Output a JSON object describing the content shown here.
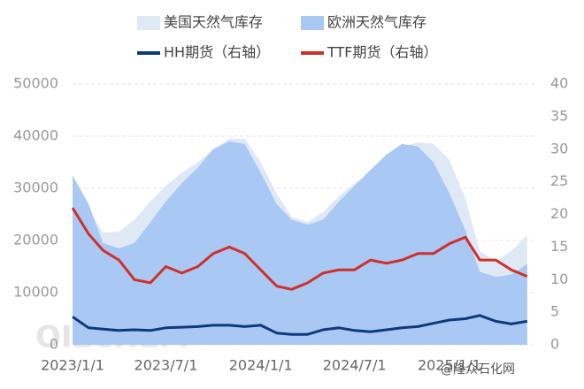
{
  "chart_data": {
    "type": "area-line",
    "x": [
      "2023/1/1",
      "2023/2/1",
      "2023/3/1",
      "2023/4/1",
      "2023/5/1",
      "2023/6/1",
      "2023/7/1",
      "2023/8/1",
      "2023/9/1",
      "2023/10/1",
      "2023/11/1",
      "2023/12/1",
      "2024/1/1",
      "2024/2/1",
      "2024/3/1",
      "2024/4/1",
      "2024/5/1",
      "2024/6/1",
      "2024/7/1",
      "2024/8/1",
      "2024/9/1",
      "2024/10/1",
      "2024/11/1",
      "2024/12/1",
      "2025/1/1",
      "2025/2/1",
      "2025/3/1",
      "2025/4/1",
      "2025/5/1",
      "2025/6/1"
    ],
    "xlim": [
      "2023/1/1",
      "2025/6/15"
    ],
    "xticks": [
      "2023/1/1",
      "2023/7/1",
      "2024/1/1",
      "2024/7/1",
      "2025/1/1"
    ],
    "ylim": [
      0,
      50000
    ],
    "yticks": [
      0,
      10000,
      20000,
      30000,
      40000,
      50000
    ],
    "y2lim": [
      0,
      40
    ],
    "y2ticks": [
      0,
      5,
      10,
      15,
      20,
      25,
      30,
      35,
      40
    ],
    "grid": true,
    "series": [
      {
        "name": "美国天然气库存",
        "kind": "area",
        "color": "#dfe9f6",
        "values": [
          32000,
          26000,
          21500,
          21700,
          24000,
          27500,
          30500,
          33000,
          35000,
          37500,
          39500,
          39500,
          35000,
          29000,
          24500,
          23500,
          25500,
          28500,
          31000,
          33000,
          35500,
          38000,
          38800,
          38500,
          35500,
          28000,
          18000,
          16000,
          18000,
          21000
        ]
      },
      {
        "name": "欧洲天然气库存",
        "kind": "area",
        "color": "#a9c9f4",
        "values": [
          32500,
          27000,
          19500,
          18500,
          19500,
          23500,
          27500,
          31000,
          34000,
          37500,
          39000,
          38500,
          33000,
          27000,
          24000,
          23000,
          24000,
          27500,
          30500,
          33500,
          36500,
          38500,
          38000,
          35000,
          29000,
          22000,
          14000,
          13000,
          13500,
          15500
        ]
      },
      {
        "name": "HH期货（右轴）",
        "kind": "line",
        "axis": "y2",
        "color": "#0d3a7e",
        "values": [
          4.3,
          2.6,
          2.4,
          2.2,
          2.3,
          2.2,
          2.6,
          2.7,
          2.8,
          3.0,
          3.0,
          2.8,
          3.0,
          1.8,
          1.6,
          1.6,
          2.3,
          2.6,
          2.2,
          2.0,
          2.3,
          2.6,
          2.8,
          3.3,
          3.8,
          4.0,
          4.5,
          3.6,
          3.2,
          3.6
        ]
      },
      {
        "name": "TTF期货（右轴）",
        "kind": "line",
        "axis": "y2",
        "color": "#d0302a",
        "values": [
          21,
          17,
          14.5,
          13,
          10,
          9.5,
          12,
          11,
          12,
          14,
          15,
          14,
          11.5,
          9,
          8.5,
          9.5,
          11,
          11.5,
          11.5,
          13,
          12.5,
          13,
          14,
          14,
          15.5,
          16.5,
          13,
          13,
          11.5,
          10.5
        ]
      }
    ],
    "watermarks": [
      "OILCHEM",
      "@隆众石化网"
    ]
  }
}
